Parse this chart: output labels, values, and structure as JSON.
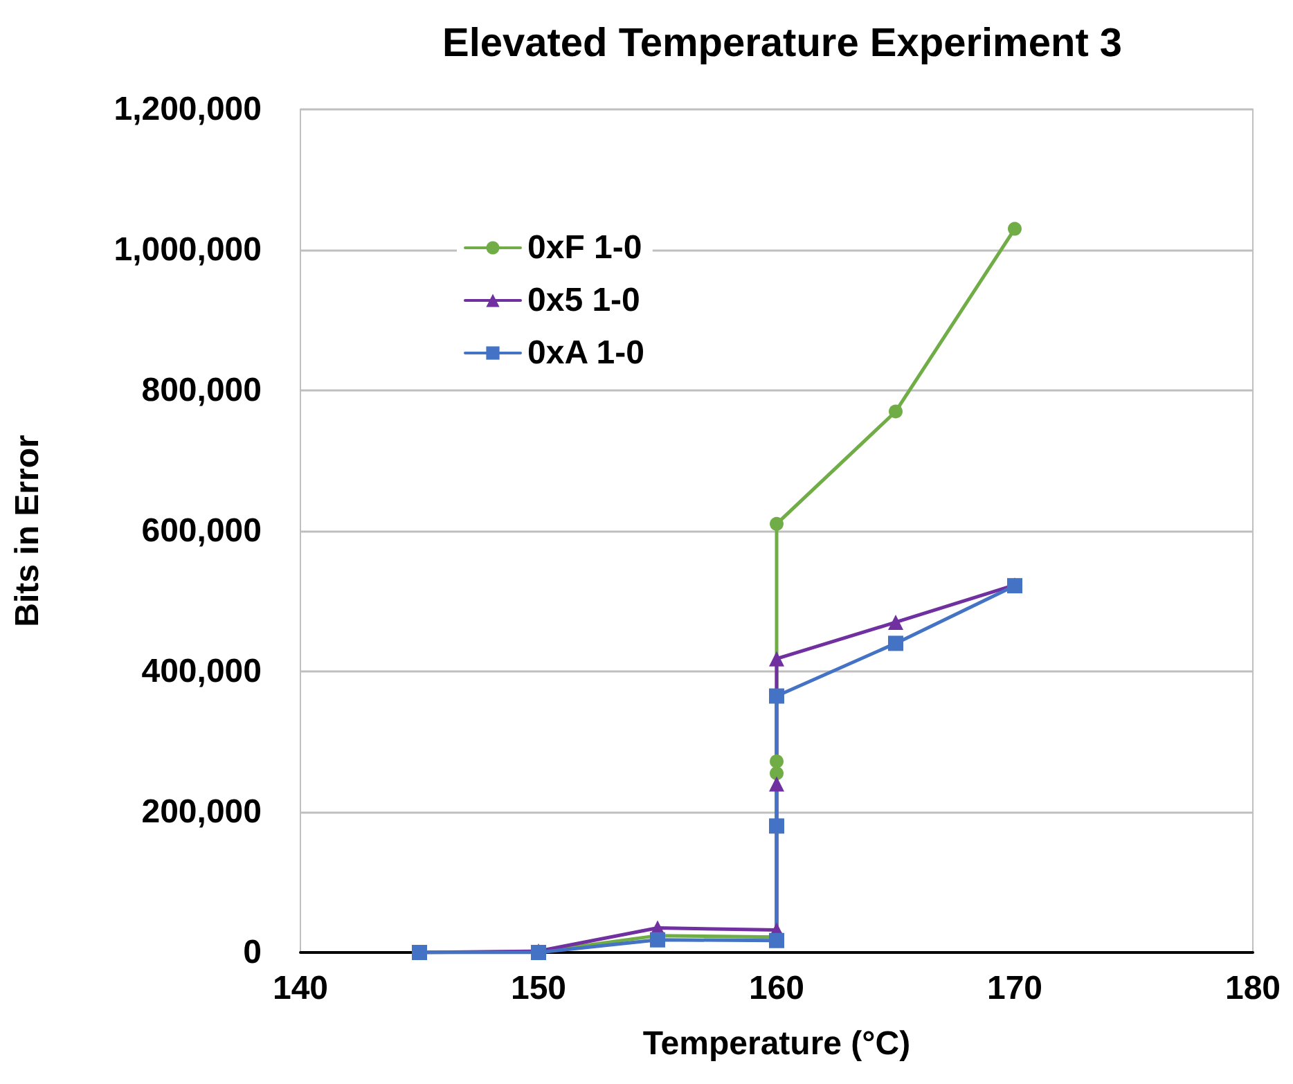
{
  "chart_data": {
    "type": "line",
    "title": "Elevated Temperature Experiment 3",
    "xlabel": "Temperature (°C)",
    "ylabel": "Bits in Error",
    "xlim": [
      140,
      180
    ],
    "xticks": [
      140,
      150,
      160,
      170,
      180
    ],
    "ylim": [
      0,
      1200000
    ],
    "yticks": [
      {
        "value": 0,
        "label": "0"
      },
      {
        "value": 200000,
        "label": "200,000"
      },
      {
        "value": 400000,
        "label": "400,000"
      },
      {
        "value": 600000,
        "label": "600,000"
      },
      {
        "value": 800000,
        "label": "800,000"
      },
      {
        "value": 1000000,
        "label": "1,000,000"
      },
      {
        "value": 1200000,
        "label": "1,200,000"
      }
    ],
    "grid": "y",
    "legend": "top left",
    "series": [
      {
        "name": "0xF 1-0",
        "color": "#70ad47",
        "marker": "circle",
        "x": [
          145,
          150,
          155,
          160,
          160,
          160,
          160,
          165,
          170
        ],
        "values": [
          0,
          1000,
          24000,
          22000,
          255000,
          272000,
          610000,
          770000,
          1030000
        ]
      },
      {
        "name": "0x5 1-0",
        "color": "#7030a0",
        "marker": "triangle",
        "x": [
          145,
          150,
          155,
          160,
          160,
          160,
          165,
          170
        ],
        "values": [
          0,
          2000,
          35000,
          32000,
          240000,
          418000,
          470000,
          523000
        ]
      },
      {
        "name": "0xA 1-0",
        "color": "#4472c4",
        "marker": "square",
        "x": [
          145,
          150,
          155,
          160,
          160,
          160,
          165,
          170
        ],
        "values": [
          0,
          0,
          18000,
          17000,
          180000,
          365000,
          440000,
          522000
        ]
      }
    ]
  }
}
